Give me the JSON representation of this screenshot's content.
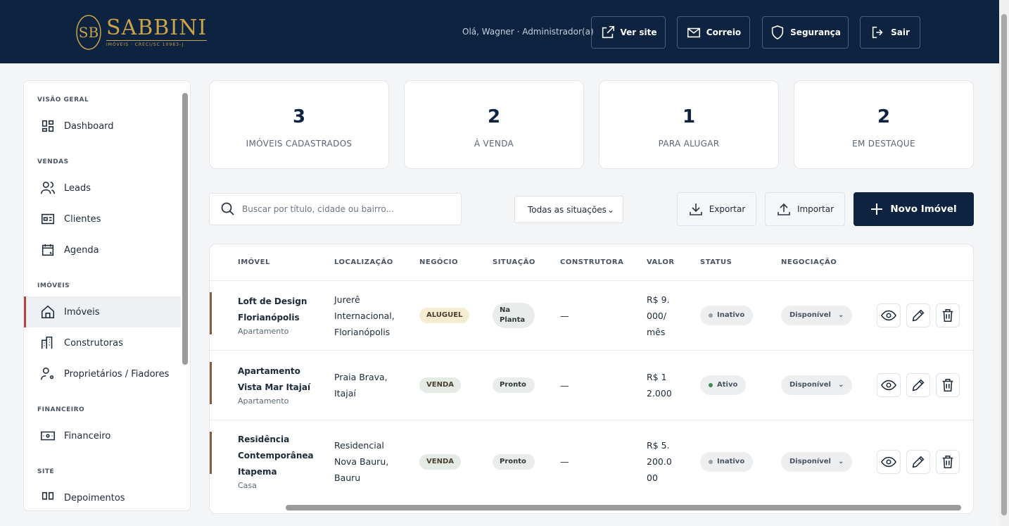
{
  "header": {
    "brand": "SABBINI",
    "brand_sub": "IMÓVEIS · CRECI/SC 10983-J",
    "greeting": "Olá, Wagner · Administrador(a)",
    "actions": [
      "Ver site",
      "Correio",
      "Segurança",
      "Sair"
    ]
  },
  "sidebar": {
    "sections": [
      {
        "title": "VISÃO GERAL",
        "items": [
          {
            "label": "Dashboard"
          }
        ]
      },
      {
        "title": "VENDAS",
        "items": [
          {
            "label": "Leads"
          },
          {
            "label": "Clientes"
          },
          {
            "label": "Agenda"
          }
        ]
      },
      {
        "title": "IMÓVEIS",
        "items": [
          {
            "label": "Imóveis",
            "active": true
          },
          {
            "label": "Construtoras"
          },
          {
            "label": "Proprietários / Fiadores"
          }
        ]
      },
      {
        "title": "FINANCEIRO",
        "items": [
          {
            "label": "Financeiro"
          }
        ]
      },
      {
        "title": "SITE",
        "items": [
          {
            "label": "Depoimentos"
          }
        ]
      }
    ]
  },
  "stats": [
    {
      "value": 3,
      "label": "IMÓVEIS CADASTRADOS"
    },
    {
      "value": 2,
      "label": "À VENDA"
    },
    {
      "value": 1,
      "label": "PARA ALUGAR"
    },
    {
      "value": 2,
      "label": "EM DESTAQUE"
    }
  ],
  "toolbar": {
    "search_placeholder": "Buscar por título, cidade ou bairro...",
    "filter": "Todas as situações",
    "export": "Exportar",
    "import": "Importar",
    "new": "Novo Imóvel"
  },
  "table": {
    "columns": [
      "IMÓVEL",
      "LOCALIZAÇÃO",
      "NEGÓCIO",
      "SITUAÇÃO",
      "CONSTRUTORA",
      "VALOR",
      "STATUS",
      "NEGOCIAÇÃO"
    ],
    "rows": [
      {
        "title": "Loft de Design Florianópolis",
        "type": "Apartamento",
        "location": "Jurerê Internacional, Florianópolis",
        "deal": "ALUGUEL",
        "deal_color": "#f6ecd2",
        "situation": "Na Planta",
        "builder": "—",
        "price": "R$ 9.000/mês",
        "status": "Inativo",
        "status_color": "#9aa0a6",
        "negotiation": "Disponível"
      },
      {
        "title": "Apartamento Vista Mar Itajaí",
        "type": "Apartamento",
        "location": "Praia Brava, Itajaí",
        "deal": "VENDA",
        "deal_color": "#e4ebe4",
        "situation": "Pronto",
        "builder": "—",
        "price": "R$ 12.000",
        "status": "Ativo",
        "status_color": "#3f8a55",
        "negotiation": "Disponível"
      },
      {
        "title": "Residência Contemporânea Itapema",
        "type": "Casa",
        "location": "Residencial Nova Bauru, Bauru",
        "deal": "VENDA",
        "deal_color": "#e4ebe4",
        "situation": "Pronto",
        "builder": "—",
        "price": "R$ 5.200.000",
        "status": "Inativo",
        "status_color": "#9aa0a6",
        "negotiation": "Disponível"
      }
    ]
  }
}
